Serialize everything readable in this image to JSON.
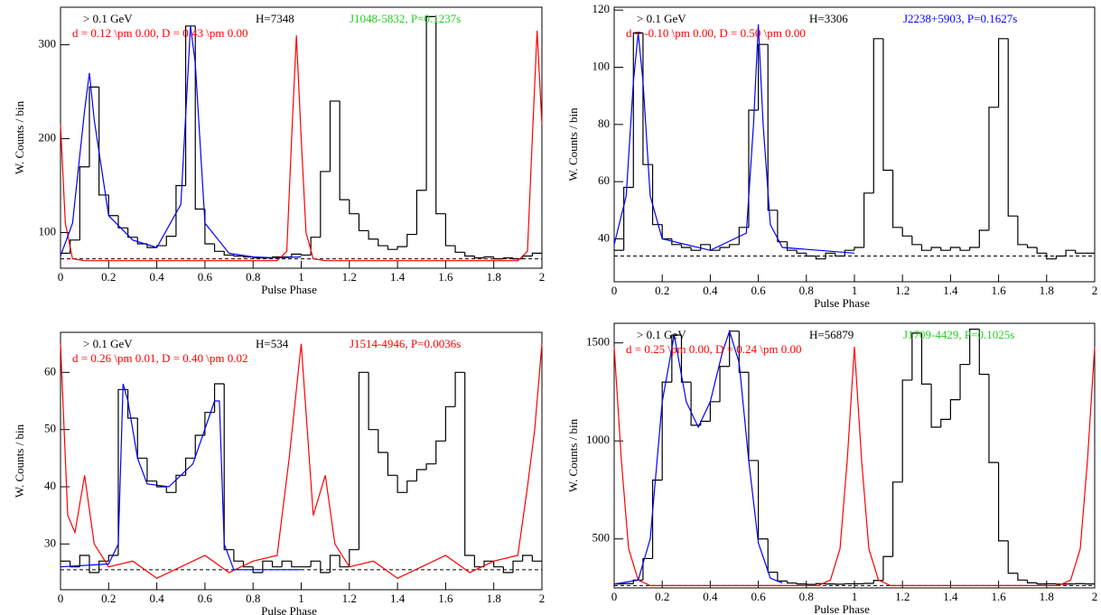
{
  "chart_data": [
    {
      "type": "histogram",
      "energy": "> 0.1 GeV",
      "htest": "H=7348",
      "pulsar": "J1048-5832, P=0.1237s",
      "pulsar_color": "#22cc22",
      "params": "d = 0.12 \\pm 0.00,  D = 0.43 \\pm 0.00",
      "params_color": "#ff0000",
      "x_label": "Pulse Phase",
      "y_label": "W. Counts / bin",
      "xlim": [
        0,
        2
      ],
      "ylim": [
        62,
        340
      ],
      "xticks": [
        0,
        0.2,
        0.4,
        0.6,
        0.8,
        1,
        1.2,
        1.4,
        1.6,
        1.8,
        2
      ],
      "yticks": [
        100,
        200,
        300
      ],
      "bins": [
        0,
        0.04,
        0.08,
        0.12,
        0.16,
        0.2,
        0.24,
        0.28,
        0.32,
        0.36,
        0.4,
        0.44,
        0.48,
        0.52,
        0.56,
        0.6,
        0.64,
        0.68,
        0.72,
        0.76,
        0.8,
        0.84,
        0.88,
        0.92,
        0.96,
        1,
        1.04,
        1.08,
        1.12,
        1.16,
        1.2,
        1.24,
        1.28,
        1.32,
        1.36,
        1.4,
        1.44,
        1.48,
        1.52,
        1.56,
        1.6,
        1.64,
        1.68,
        1.72,
        1.76,
        1.8,
        1.84,
        1.88,
        1.92,
        1.96,
        2
      ],
      "counts": [
        78,
        92,
        170,
        255,
        140,
        118,
        105,
        95,
        88,
        84,
        86,
        96,
        150,
        320,
        125,
        88,
        80,
        76,
        75,
        74,
        73,
        73,
        74,
        74,
        77,
        76,
        95,
        165,
        240,
        135,
        120,
        102,
        93,
        86,
        82,
        85,
        98,
        145,
        330,
        120,
        86,
        79,
        75,
        73,
        74,
        72,
        73,
        72,
        75,
        78
      ],
      "color": "#000000",
      "baseline": 72,
      "fit": {
        "color": "#0000ff",
        "x": [
          0,
          0.05,
          0.1,
          0.12,
          0.14,
          0.2,
          0.3,
          0.4,
          0.5,
          0.54,
          0.56,
          0.6,
          0.7,
          0.8,
          0.9,
          1
        ],
        "values": [
          75,
          110,
          230,
          270,
          220,
          118,
          92,
          84,
          130,
          320,
          280,
          110,
          78,
          74,
          73,
          74
        ]
      },
      "radio": {
        "color": "#ff0000",
        "x": [
          0,
          0.02,
          0.05,
          0.1,
          0.9,
          0.94,
          0.96,
          0.98,
          1,
          1.02,
          1.05,
          1.1,
          1.9,
          1.94,
          1.96,
          1.98,
          2
        ],
        "values": [
          215,
          110,
          72,
          70,
          70,
          80,
          200,
          310,
          200,
          100,
          72,
          70,
          70,
          80,
          200,
          315,
          215
        ]
      }
    },
    {
      "type": "histogram",
      "energy": "> 0.1 GeV",
      "htest": "H=3306",
      "pulsar": "J2238+5903, P=0.1627s",
      "pulsar_color": "#0000ff",
      "params": "d = -0.10 \\pm 0.00,  D = 0.50 \\pm 0.00",
      "params_color": "#ff0000",
      "x_label": "Pulse Phase",
      "y_label": "W. Counts / bin",
      "xlim": [
        0,
        2
      ],
      "ylim": [
        25,
        121
      ],
      "xticks": [
        0,
        0.2,
        0.4,
        0.6,
        0.8,
        1,
        1.2,
        1.4,
        1.6,
        1.8,
        2
      ],
      "yticks": [
        40,
        60,
        80,
        100,
        120
      ],
      "bins": [
        0,
        0.04,
        0.08,
        0.12,
        0.16,
        0.2,
        0.24,
        0.28,
        0.32,
        0.36,
        0.4,
        0.44,
        0.48,
        0.52,
        0.56,
        0.6,
        0.64,
        0.68,
        0.72,
        0.76,
        0.8,
        0.84,
        0.88,
        0.92,
        0.96,
        1,
        1.04,
        1.08,
        1.12,
        1.16,
        1.2,
        1.24,
        1.28,
        1.32,
        1.36,
        1.4,
        1.44,
        1.48,
        1.52,
        1.56,
        1.6,
        1.64,
        1.68,
        1.72,
        1.76,
        1.8,
        1.84,
        1.88,
        1.92,
        1.96,
        2
      ],
      "counts": [
        36,
        58,
        112,
        66,
        45,
        40,
        38,
        37,
        36,
        38,
        36,
        37,
        38,
        44,
        85,
        108,
        50,
        39,
        36,
        35,
        34,
        33,
        35,
        34,
        36,
        37,
        56,
        110,
        64,
        44,
        41,
        38,
        36,
        37,
        36,
        37,
        36,
        37,
        43,
        86,
        110,
        48,
        38,
        37,
        35,
        33,
        34,
        36,
        35,
        35
      ],
      "color": "#000000",
      "baseline": 34,
      "fit": {
        "color": "#0000ff",
        "x": [
          0,
          0.05,
          0.08,
          0.1,
          0.12,
          0.15,
          0.2,
          0.4,
          0.55,
          0.58,
          0.6,
          0.62,
          0.65,
          0.7,
          1
        ],
        "values": [
          38,
          55,
          95,
          112,
          95,
          55,
          40,
          36,
          42,
          80,
          115,
          80,
          45,
          37,
          35
        ]
      }
    },
    {
      "type": "histogram",
      "energy": "> 0.1 GeV",
      "htest": "H=534",
      "pulsar": "J1514-4946, P=0.0036s",
      "pulsar_color": "#ff0000",
      "params": "d = 0.26 \\pm 0.01,  D = 0.40 \\pm 0.02",
      "params_color": "#ff0000",
      "x_label": "Pulse Phase",
      "y_label": "W. Counts / bin",
      "xlim": [
        0,
        2
      ],
      "ylim": [
        22,
        67
      ],
      "xticks": [
        0,
        0.2,
        0.4,
        0.6,
        0.8,
        1,
        1.2,
        1.4,
        1.6,
        1.8,
        2
      ],
      "yticks": [
        30,
        40,
        50,
        60
      ],
      "bins": [
        0,
        0.04,
        0.08,
        0.12,
        0.16,
        0.2,
        0.24,
        0.28,
        0.32,
        0.36,
        0.4,
        0.44,
        0.48,
        0.52,
        0.56,
        0.6,
        0.64,
        0.68,
        0.72,
        0.76,
        0.8,
        0.84,
        0.88,
        0.92,
        0.96,
        1,
        1.04,
        1.08,
        1.12,
        1.16,
        1.2,
        1.24,
        1.28,
        1.32,
        1.36,
        1.4,
        1.44,
        1.48,
        1.52,
        1.56,
        1.6,
        1.64,
        1.68,
        1.72,
        1.76,
        1.8,
        1.84,
        1.88,
        1.92,
        1.96,
        2
      ],
      "counts": [
        27,
        26,
        28,
        25,
        27,
        28,
        57,
        52,
        45,
        41,
        40,
        39,
        42,
        45,
        49,
        53,
        58,
        29,
        27,
        26,
        25,
        27,
        26,
        27,
        26,
        26,
        27,
        25,
        28,
        26,
        29,
        60,
        50,
        46,
        42,
        39,
        41,
        43,
        44,
        48,
        54,
        60,
        28,
        26,
        27,
        26,
        25,
        27,
        28,
        27
      ],
      "color": "#000000",
      "baseline": 25.5,
      "fit": {
        "color": "#0000ff",
        "x": [
          0,
          0.2,
          0.24,
          0.26,
          0.28,
          0.32,
          0.36,
          0.45,
          0.55,
          0.64,
          0.66,
          0.68,
          0.72,
          1
        ],
        "values": [
          26,
          26.5,
          30,
          58,
          55,
          45,
          40.5,
          40,
          44,
          55,
          55,
          30,
          25.5,
          25.5
        ]
      },
      "radio": {
        "color": "#ff0000",
        "x": [
          0,
          0.03,
          0.06,
          0.1,
          0.14,
          0.2,
          0.3,
          0.4,
          0.5,
          0.6,
          0.7,
          0.8,
          0.9,
          0.95,
          1,
          1.05,
          1.1,
          1.14,
          1.2,
          1.3,
          1.4,
          1.5,
          1.6,
          1.7,
          1.8,
          1.9,
          1.94,
          1.97,
          2
        ],
        "values": [
          65,
          35,
          32,
          42,
          30,
          26,
          27,
          24,
          26,
          28,
          25,
          27,
          28,
          45,
          65,
          35,
          42,
          30,
          26,
          27,
          24,
          26,
          28,
          25,
          27,
          28,
          40,
          50,
          65
        ]
      }
    },
    {
      "type": "histogram",
      "energy": "> 0.1 GeV",
      "htest": "H=56879",
      "pulsar": "J1709-4429, P=0.1025s",
      "pulsar_color": "#22cc22",
      "params": "d = 0.25 \\pm 0.00,  D = 0.24 \\pm 0.00",
      "params_color": "#ff0000",
      "x_label": "Pulse Phase",
      "y_label": "W. Counts / bin",
      "xlim": [
        0,
        2
      ],
      "ylim": [
        250,
        1600
      ],
      "xticks": [
        0,
        0.2,
        0.4,
        0.6,
        0.8,
        1,
        1.2,
        1.4,
        1.6,
        1.8,
        2
      ],
      "yticks": [
        500,
        1000,
        1500
      ],
      "bins": [
        0,
        0.04,
        0.08,
        0.12,
        0.16,
        0.2,
        0.24,
        0.28,
        0.32,
        0.36,
        0.4,
        0.44,
        0.48,
        0.52,
        0.56,
        0.6,
        0.64,
        0.68,
        0.72,
        0.76,
        0.8,
        0.84,
        0.88,
        0.92,
        0.96,
        1,
        1.04,
        1.08,
        1.12,
        1.16,
        1.2,
        1.24,
        1.28,
        1.32,
        1.36,
        1.4,
        1.44,
        1.48,
        1.52,
        1.56,
        1.6,
        1.64,
        1.68,
        1.72,
        1.76,
        1.8,
        1.84,
        1.88,
        1.92,
        1.96,
        2
      ],
      "counts": [
        270,
        272,
        290,
        400,
        800,
        1300,
        1540,
        1300,
        1080,
        1100,
        1200,
        1380,
        1560,
        1350,
        900,
        500,
        330,
        285,
        275,
        270,
        268,
        272,
        270,
        269,
        271,
        271,
        273,
        288,
        410,
        790,
        1310,
        1550,
        1290,
        1070,
        1110,
        1210,
        1390,
        1570,
        1340,
        890,
        490,
        325,
        290,
        276,
        270,
        271,
        269,
        270,
        272,
        270
      ],
      "color": "#000000",
      "baseline": 262,
      "fit": {
        "color": "#0000ff",
        "x": [
          0,
          0.1,
          0.15,
          0.2,
          0.25,
          0.3,
          0.35,
          0.4,
          0.45,
          0.48,
          0.52,
          0.56,
          0.6,
          0.65,
          0.7
        ],
        "values": [
          270,
          290,
          500,
          1200,
          1540,
          1200,
          1070,
          1200,
          1450,
          1560,
          1400,
          900,
          480,
          300,
          275
        ]
      },
      "radio": {
        "color": "#ff0000",
        "x": [
          0,
          0.03,
          0.06,
          0.1,
          0.15,
          0.85,
          0.9,
          0.94,
          0.97,
          1,
          1.03,
          1.06,
          1.1,
          1.15,
          1.85,
          1.9,
          1.94,
          1.97,
          2
        ],
        "values": [
          1480,
          900,
          450,
          290,
          262,
          262,
          290,
          450,
          900,
          1480,
          900,
          450,
          290,
          262,
          262,
          290,
          450,
          900,
          1480
        ]
      }
    }
  ]
}
